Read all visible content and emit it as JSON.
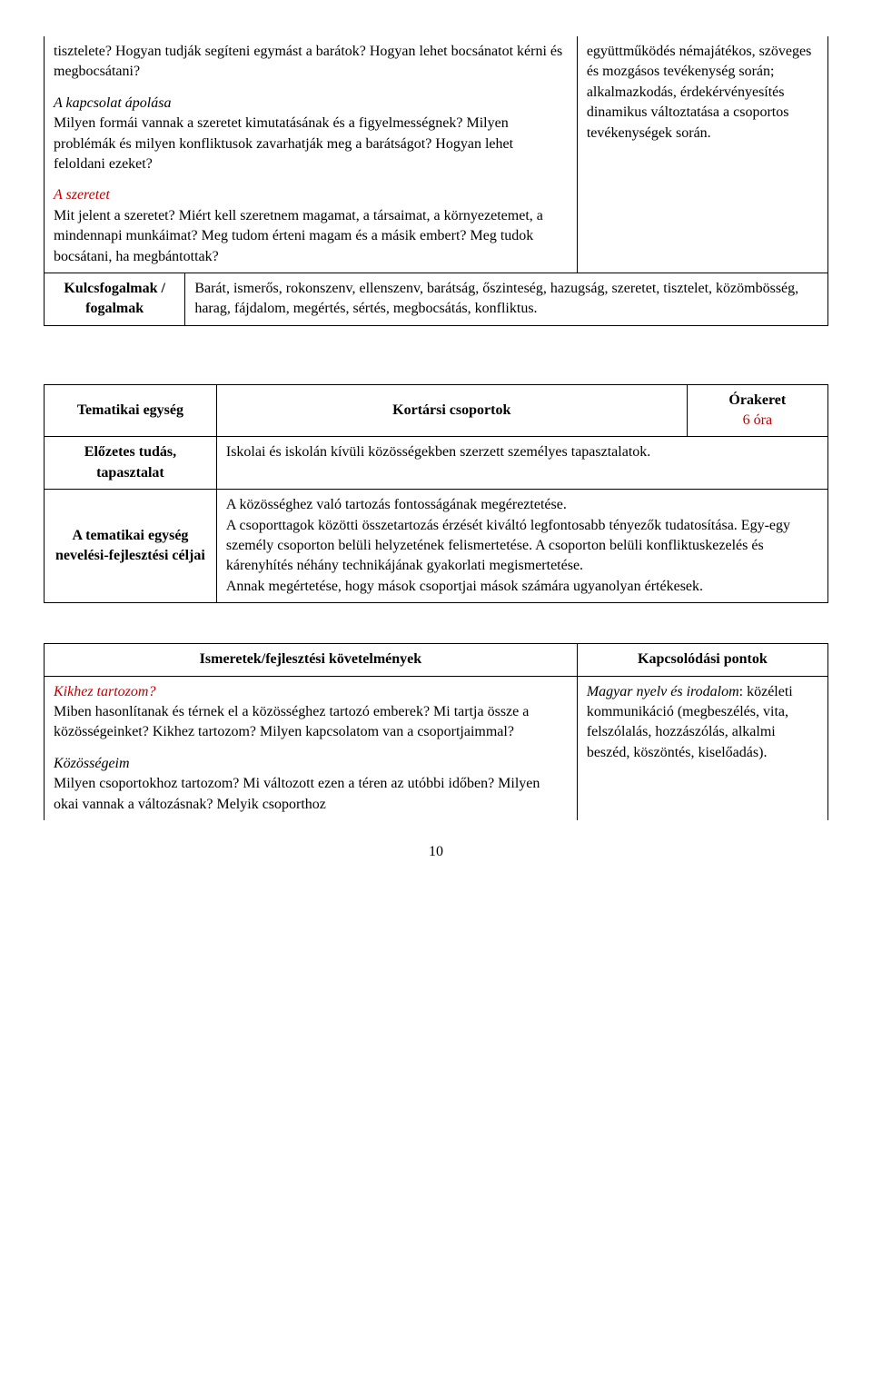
{
  "table1": {
    "left": {
      "para1": "tisztelete? Hogyan tudják segíteni egymást a barátok? Hogyan lehet bocsánatot kérni és megbocsátani?",
      "heading2": "A kapcsolat ápolása",
      "para2": "Milyen formái vannak a szeretet kimutatásának és a figyelmességnek? Milyen problémák és milyen konfliktusok zavarhatják meg a barátságot? Hogyan lehet feloldani ezeket?",
      "heading3": "A szeretet",
      "para3": "Mit jelent a szeretet? Miért kell szeretnem magamat, a társaimat, a környezetemet, a mindennapi munkáimat? Meg tudom érteni magam és a másik embert? Meg tudok bocsátani, ha megbántottak?"
    },
    "right": "együttműködés némajátékos, szöveges és mozgásos tevékenység során; alkalmazkodás, érdekérvényesítés dinamikus változtatása a csoportos tevékenységek során.",
    "row2label": "Kulcsfogalmak / fogalmak",
    "row2text": "Barát, ismerős, rokonszenv, ellenszenv, barátság, őszinteség, hazugság, szeretet, tisztelet, közömbösség, harag, fájdalom, megértés, sértés, megbocsátás, konfliktus."
  },
  "table2": {
    "r1c1": "Tematikai egység",
    "r1c2": "Kortársi csoportok",
    "r1c3_line1": "Órakeret",
    "r1c3_line2": "6 óra",
    "r2c1": "Előzetes tudás, tapasztalat",
    "r2c2": "Iskolai és iskolán kívüli közösségekben szerzett személyes tapasztalatok.",
    "r3c1": "A tematikai egység nevelési-fejlesztési céljai",
    "r3c2": "A közösséghez való tartozás fontosságának megéreztetése.\nA csoporttagok közötti összetartozás érzését kiváltó legfontosabb tényezők tudatosítása. Egy-egy személy csoporton belüli helyzetének felismertetése. A csoporton belüli konfliktuskezelés és kárenyhítés néhány technikájának gyakorlati megismertetése.\nAnnak megértetése, hogy mások csoportjai mások számára ugyanolyan értékesek."
  },
  "table3": {
    "header_left": "Ismeretek/fejlesztési követelmények",
    "header_right": "Kapcsolódási pontok",
    "left": {
      "heading1": "Kikhez tartozom?",
      "para1": "Miben hasonlítanak és térnek el a közösséghez tartozó emberek? Mi tartja össze a közösségeinket? Kikhez tartozom? Milyen kapcsolatom van a csoportjaimmal?",
      "heading2": "Közösségeim",
      "para2": "Milyen csoportokhoz tartozom? Mi változott ezen a téren az utóbbi időben? Milyen okai vannak a változásnak? Melyik csoporthoz"
    },
    "right": {
      "heading": "Magyar nyelv és irodalom",
      "text": ": közéleti kommunikáció (megbeszélés, vita, felszólalás, hozzászólás, alkalmi beszéd, köszöntés, kiselőadás)."
    }
  },
  "pageNumber": "10"
}
